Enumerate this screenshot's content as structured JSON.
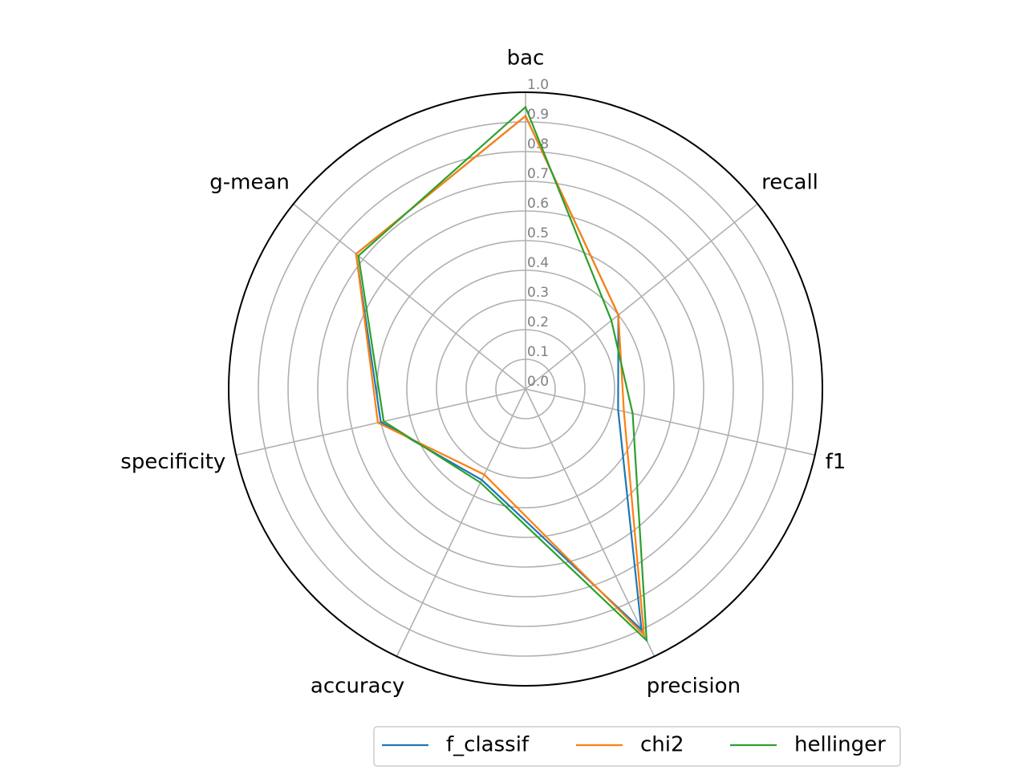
{
  "chart_data": {
    "type": "radar",
    "title": "",
    "axes": [
      "bac",
      "recall",
      "f1",
      "precision",
      "accuracy",
      "specificity",
      "g-mean"
    ],
    "r_ticks": [
      "0.0",
      "0.1",
      "0.2",
      "0.3",
      "0.4",
      "0.5",
      "0.6",
      "0.7",
      "0.8",
      "0.9",
      "1.0"
    ],
    "rlim": [
      0,
      1.0
    ],
    "grid": true,
    "legend_position": "bottom-right",
    "series": [
      {
        "name": "f_classif",
        "color": "#1f77b4",
        "values": [
          0.92,
          0.4,
          0.32,
          0.9,
          0.34,
          0.5,
          0.73
        ]
      },
      {
        "name": "chi2",
        "color": "#ff7f0e",
        "values": [
          0.92,
          0.4,
          0.34,
          0.92,
          0.32,
          0.51,
          0.73
        ]
      },
      {
        "name": "hellinger",
        "color": "#2ca02c",
        "values": [
          0.95,
          0.37,
          0.37,
          0.94,
          0.35,
          0.49,
          0.72
        ]
      }
    ]
  }
}
